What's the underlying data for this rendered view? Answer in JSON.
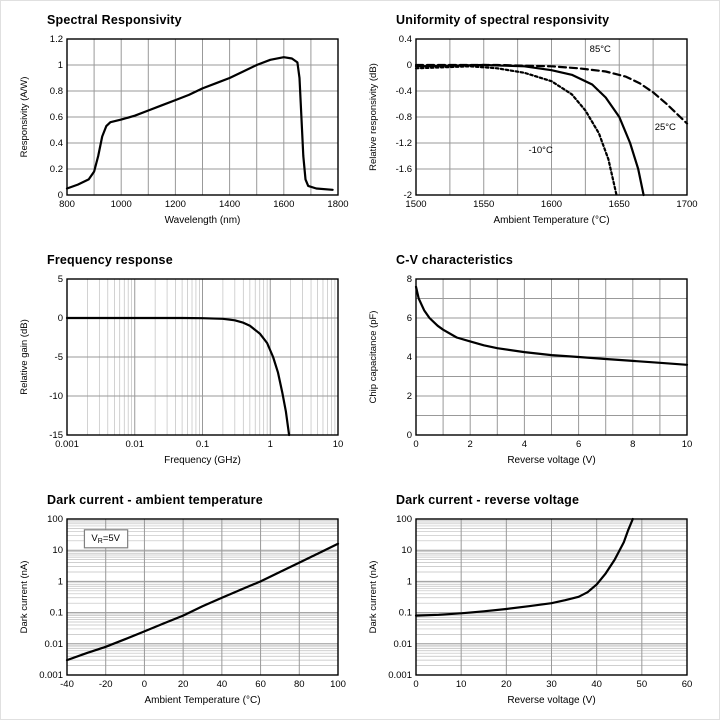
{
  "page": {
    "background": "#ffffff"
  },
  "chart_data": [
    {
      "id": "spectral-responsivity",
      "type": "line",
      "title": "Spectral Responsivity",
      "xlabel": "Wavelength (nm)",
      "ylabel": "Responsivity (A/W)",
      "x": {
        "scale": "linear",
        "lim": [
          800,
          1800
        ],
        "ticks": [
          800,
          1000,
          1200,
          1400,
          1600,
          1800
        ],
        "grid": [
          900,
          1000,
          1100,
          1200,
          1300,
          1400,
          1500,
          1600,
          1700
        ]
      },
      "y": {
        "scale": "linear",
        "lim": [
          0,
          1.2
        ],
        "ticks": [
          0,
          0.2,
          0.4,
          0.6,
          0.8,
          1,
          1.2
        ],
        "grid": [
          0.2,
          0.4,
          0.6,
          0.8,
          1.0
        ]
      },
      "series": [
        {
          "name": "responsivity",
          "dash": "solid",
          "points": [
            [
              800,
              0.05
            ],
            [
              840,
              0.08
            ],
            [
              880,
              0.12
            ],
            [
              900,
              0.18
            ],
            [
              915,
              0.3
            ],
            [
              930,
              0.45
            ],
            [
              945,
              0.53
            ],
            [
              960,
              0.56
            ],
            [
              1000,
              0.58
            ],
            [
              1050,
              0.61
            ],
            [
              1100,
              0.65
            ],
            [
              1150,
              0.69
            ],
            [
              1200,
              0.73
            ],
            [
              1250,
              0.77
            ],
            [
              1300,
              0.82
            ],
            [
              1350,
              0.86
            ],
            [
              1400,
              0.9
            ],
            [
              1450,
              0.95
            ],
            [
              1500,
              1.0
            ],
            [
              1550,
              1.04
            ],
            [
              1600,
              1.06
            ],
            [
              1630,
              1.05
            ],
            [
              1650,
              1.02
            ],
            [
              1658,
              0.9
            ],
            [
              1665,
              0.6
            ],
            [
              1672,
              0.3
            ],
            [
              1680,
              0.12
            ],
            [
              1690,
              0.07
            ],
            [
              1720,
              0.05
            ],
            [
              1780,
              0.04
            ]
          ]
        }
      ],
      "annotations": []
    },
    {
      "id": "uniformity-spectral-responsivity",
      "type": "line",
      "title": "Uniformity of spectral responsivity",
      "xlabel": "Ambient Temperature (°C)",
      "ylabel": "Relative responsivity (dB)",
      "x": {
        "scale": "linear",
        "lim": [
          1500,
          1700
        ],
        "ticks": [
          1500,
          1550,
          1600,
          1650,
          1700
        ],
        "grid": [
          1525,
          1550,
          1575,
          1600,
          1625,
          1650,
          1675
        ]
      },
      "y": {
        "scale": "linear",
        "lim": [
          -2,
          0.4
        ],
        "ticks": [
          0.4,
          0,
          -0.4,
          -0.8,
          -1.2,
          -1.6,
          -2
        ],
        "grid": [
          0,
          -0.4,
          -0.8,
          -1.2,
          -1.6
        ]
      },
      "series": [
        {
          "name": "85°C",
          "dash": "dashed",
          "points": [
            [
              1500,
              0
            ],
            [
              1560,
              0
            ],
            [
              1600,
              -0.02
            ],
            [
              1620,
              -0.05
            ],
            [
              1640,
              -0.1
            ],
            [
              1655,
              -0.18
            ],
            [
              1665,
              -0.28
            ],
            [
              1675,
              -0.42
            ],
            [
              1685,
              -0.6
            ],
            [
              1695,
              -0.8
            ],
            [
              1700,
              -0.9
            ]
          ]
        },
        {
          "name": "25°C",
          "dash": "solid",
          "points": [
            [
              1500,
              -0.02
            ],
            [
              1550,
              0
            ],
            [
              1580,
              -0.02
            ],
            [
              1600,
              -0.08
            ],
            [
              1615,
              -0.15
            ],
            [
              1630,
              -0.3
            ],
            [
              1640,
              -0.5
            ],
            [
              1650,
              -0.8
            ],
            [
              1658,
              -1.2
            ],
            [
              1664,
              -1.6
            ],
            [
              1668,
              -2.0
            ]
          ]
        },
        {
          "name": "-10°C",
          "dash": "dotted",
          "points": [
            [
              1500,
              -0.05
            ],
            [
              1540,
              -0.02
            ],
            [
              1560,
              -0.05
            ],
            [
              1580,
              -0.12
            ],
            [
              1600,
              -0.25
            ],
            [
              1615,
              -0.45
            ],
            [
              1625,
              -0.7
            ],
            [
              1635,
              -1.05
            ],
            [
              1642,
              -1.45
            ],
            [
              1648,
              -2.0
            ]
          ]
        }
      ],
      "annotations": [
        {
          "text": "85°C",
          "x": 1636,
          "y": 0.2
        },
        {
          "text": "25°C",
          "x": 1684,
          "y": -1.0
        },
        {
          "text": "-10°C",
          "x": 1592,
          "y": -1.35
        }
      ]
    },
    {
      "id": "frequency-response",
      "type": "line",
      "title": "Frequency response",
      "xlabel": "Frequency (GHz)",
      "ylabel": "Relative gain (dB)",
      "x": {
        "scale": "log",
        "lim": [
          0.001,
          10
        ],
        "ticks": [
          0.001,
          0.01,
          0.1,
          1,
          10
        ],
        "labels": [
          "0.001",
          "0.01",
          "0.1",
          "1",
          "10"
        ],
        "grid": [
          0.01,
          0.1,
          1
        ],
        "minor": true
      },
      "y": {
        "scale": "linear",
        "lim": [
          -15,
          5
        ],
        "ticks": [
          5,
          0,
          -5,
          -10,
          -15
        ],
        "grid": [
          0,
          -5,
          -10
        ]
      },
      "series": [
        {
          "name": "relative gain",
          "dash": "solid",
          "points": [
            [
              0.001,
              0
            ],
            [
              0.01,
              0
            ],
            [
              0.05,
              0
            ],
            [
              0.1,
              -0.02
            ],
            [
              0.2,
              -0.1
            ],
            [
              0.3,
              -0.3
            ],
            [
              0.4,
              -0.6
            ],
            [
              0.5,
              -1.0
            ],
            [
              0.7,
              -2.0
            ],
            [
              0.9,
              -3.2
            ],
            [
              1.1,
              -5.0
            ],
            [
              1.3,
              -7.0
            ],
            [
              1.5,
              -9.5
            ],
            [
              1.7,
              -12.0
            ],
            [
              1.9,
              -15.0
            ]
          ]
        }
      ],
      "annotations": []
    },
    {
      "id": "cv-characteristics",
      "type": "line",
      "title": "C-V characteristics",
      "xlabel": "Reverse voltage (V)",
      "ylabel": "Chip capacitance (pF)",
      "x": {
        "scale": "linear",
        "lim": [
          0,
          10
        ],
        "ticks": [
          0,
          2,
          4,
          6,
          8,
          10
        ],
        "grid": [
          1,
          2,
          3,
          4,
          5,
          6,
          7,
          8,
          9
        ]
      },
      "y": {
        "scale": "linear",
        "lim": [
          0,
          8
        ],
        "ticks": [
          0,
          2,
          4,
          6,
          8
        ],
        "grid": [
          1,
          2,
          3,
          4,
          5,
          6,
          7
        ]
      },
      "series": [
        {
          "name": "chip capacitance",
          "dash": "solid",
          "points": [
            [
              0,
              7.6
            ],
            [
              0.1,
              7.0
            ],
            [
              0.3,
              6.4
            ],
            [
              0.5,
              6.0
            ],
            [
              0.8,
              5.6
            ],
            [
              1,
              5.4
            ],
            [
              1.5,
              5.0
            ],
            [
              2,
              4.8
            ],
            [
              2.5,
              4.6
            ],
            [
              3,
              4.45
            ],
            [
              4,
              4.25
            ],
            [
              5,
              4.1
            ],
            [
              6,
              4.0
            ],
            [
              7,
              3.9
            ],
            [
              8,
              3.8
            ],
            [
              9,
              3.7
            ],
            [
              10,
              3.6
            ]
          ]
        }
      ],
      "annotations": []
    },
    {
      "id": "dark-current-ambient-temperature",
      "type": "line",
      "title": "Dark current - ambient temperature",
      "xlabel": "Ambient Temperature (°C)",
      "ylabel": "Dark current (nA)",
      "x": {
        "scale": "linear",
        "lim": [
          -40,
          100
        ],
        "ticks": [
          -40,
          -20,
          0,
          20,
          40,
          60,
          80,
          100
        ],
        "grid": [
          -20,
          0,
          20,
          40,
          60,
          80
        ]
      },
      "y": {
        "scale": "log",
        "lim": [
          0.001,
          100
        ],
        "ticks": [
          100,
          10,
          1,
          0.1,
          0.01,
          0.001
        ],
        "labels": [
          "100",
          "10",
          "1",
          "0.1",
          "0.01",
          "0.001"
        ],
        "grid": [
          0.01,
          0.1,
          1,
          10
        ],
        "minor": true
      },
      "series": [
        {
          "name": "dark current",
          "dash": "solid",
          "points": [
            [
              -40,
              0.003
            ],
            [
              -30,
              0.005
            ],
            [
              -20,
              0.008
            ],
            [
              -10,
              0.014
            ],
            [
              0,
              0.025
            ],
            [
              10,
              0.045
            ],
            [
              20,
              0.08
            ],
            [
              30,
              0.16
            ],
            [
              40,
              0.3
            ],
            [
              50,
              0.55
            ],
            [
              60,
              1.0
            ],
            [
              70,
              2.0
            ],
            [
              80,
              4.0
            ],
            [
              90,
              8.0
            ],
            [
              100,
              16
            ]
          ]
        }
      ],
      "annotations": [
        {
          "text": "V_R_=5V",
          "x": -20,
          "y": 20,
          "box": true
        }
      ]
    },
    {
      "id": "dark-current-reverse-voltage",
      "type": "line",
      "title": "Dark current - reverse voltage",
      "xlabel": "Reverse voltage (V)",
      "ylabel": "Dark current (nA)",
      "x": {
        "scale": "linear",
        "lim": [
          0,
          60
        ],
        "ticks": [
          0,
          10,
          20,
          30,
          40,
          50,
          60
        ],
        "grid": [
          10,
          20,
          30,
          40,
          50
        ]
      },
      "y": {
        "scale": "log",
        "lim": [
          0.001,
          100
        ],
        "ticks": [
          100,
          10,
          1,
          0.1,
          0.01,
          0.001
        ],
        "labels": [
          "100",
          "10",
          "1",
          "0.1",
          "0.01",
          "0.001"
        ],
        "grid": [
          0.01,
          0.1,
          1,
          10
        ],
        "minor": true
      },
      "series": [
        {
          "name": "dark current",
          "dash": "solid",
          "points": [
            [
              0,
              0.08
            ],
            [
              5,
              0.085
            ],
            [
              10,
              0.095
            ],
            [
              15,
              0.11
            ],
            [
              20,
              0.13
            ],
            [
              25,
              0.16
            ],
            [
              30,
              0.2
            ],
            [
              33,
              0.25
            ],
            [
              36,
              0.32
            ],
            [
              38,
              0.45
            ],
            [
              40,
              0.8
            ],
            [
              42,
              1.8
            ],
            [
              44,
              5.0
            ],
            [
              46,
              18
            ],
            [
              47,
              45
            ],
            [
              48,
              100
            ]
          ]
        }
      ],
      "annotations": []
    }
  ]
}
